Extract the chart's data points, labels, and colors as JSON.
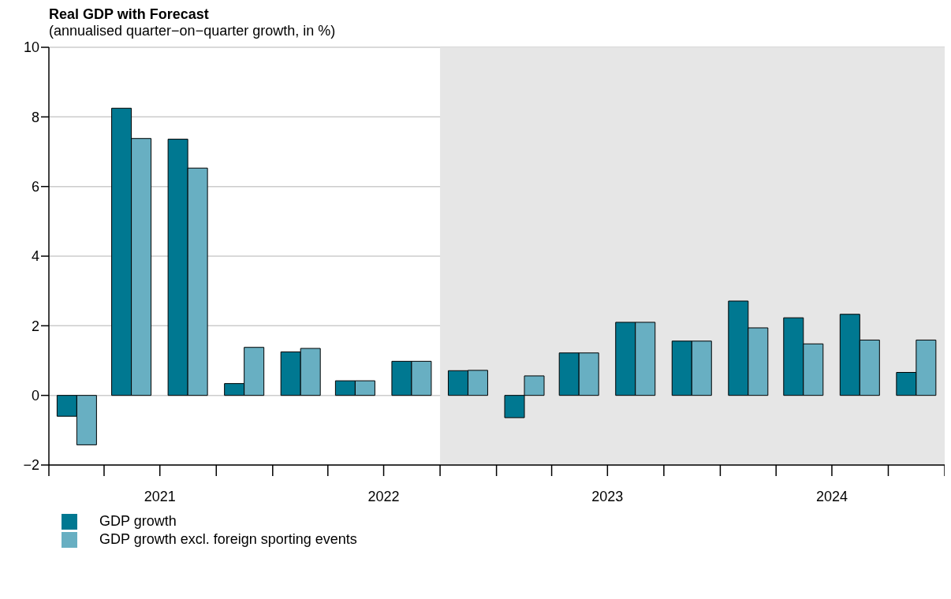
{
  "chart_data": {
    "type": "bar",
    "title": "Real GDP with Forecast",
    "subtitle": "(annualised quarter−on−quarter growth, in %)",
    "x": [
      "2021-02-15",
      "2021-05-15",
      "2021-08-15",
      "2021-11-15",
      "2022-02-15",
      "2022-05-15",
      "2022-08-15",
      "2022-11-15",
      "2023-02-15",
      "2023-05-15",
      "2023-08-15",
      "2023-11-15",
      "2024-02-15",
      "2024-05-15",
      "2024-08-15",
      "2024-11-15"
    ],
    "series": [
      {
        "name": "GDP growth",
        "color": "#007891",
        "values": [
          -0.6,
          8.25,
          7.36,
          0.34,
          1.25,
          0.42,
          0.98,
          0.71,
          -0.64,
          1.22,
          2.1,
          1.56,
          2.71,
          2.23,
          2.33,
          0.66
        ]
      },
      {
        "name": "GDP growth excl. foreign sporting events",
        "color": "#68afc2",
        "values": [
          -1.42,
          7.38,
          6.53,
          1.38,
          1.35,
          0.42,
          0.98,
          0.72,
          0.56,
          1.22,
          2.1,
          1.56,
          1.94,
          1.48,
          1.59,
          1.59
        ]
      }
    ],
    "xlim": [
      "2021-01-01",
      "2025-01-01"
    ],
    "xticks": [
      {
        "value": "2021-01-01",
        "label": null
      },
      {
        "value": "2021-04-01",
        "label": null
      },
      {
        "value": "2021-07-01",
        "label": "2021"
      },
      {
        "value": "2021-10-01",
        "label": null
      },
      {
        "value": "2022-01-01",
        "label": null
      },
      {
        "value": "2022-04-01",
        "label": null
      },
      {
        "value": "2022-07-01",
        "label": "2022"
      },
      {
        "value": "2022-10-01",
        "label": null
      },
      {
        "value": "2023-01-01",
        "label": null
      },
      {
        "value": "2023-04-01",
        "label": null
      },
      {
        "value": "2023-07-01",
        "label": "2023"
      },
      {
        "value": "2023-10-01",
        "label": null
      },
      {
        "value": "2024-01-01",
        "label": null
      },
      {
        "value": "2024-04-01",
        "label": null
      },
      {
        "value": "2024-07-01",
        "label": "2024"
      },
      {
        "value": "2024-10-01",
        "label": null
      },
      {
        "value": "2025-01-01",
        "label": null
      }
    ],
    "ylim": [
      -2,
      10
    ],
    "yticks": [
      -2,
      0,
      2,
      4,
      6,
      8,
      10
    ],
    "bands": [
      {
        "axis": "x",
        "from": "2022-10-01",
        "to": "2025-01-01",
        "color": "#e6e6e6"
      }
    ],
    "grid": "y",
    "legend": "bottom left"
  }
}
